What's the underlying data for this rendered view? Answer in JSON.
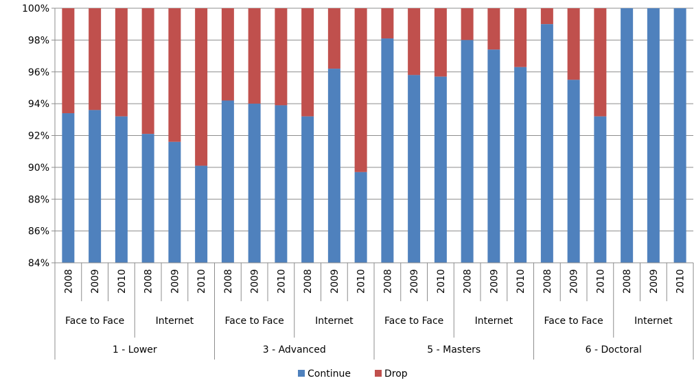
{
  "chart_data": {
    "type": "bar",
    "stacked": true,
    "percent_stacked": true,
    "title": "",
    "xlabel": "",
    "ylabel": "",
    "ylim": [
      0.84,
      1.0
    ],
    "y_ticks": [
      0.84,
      0.86,
      0.88,
      0.9,
      0.92,
      0.94,
      0.96,
      0.98,
      1.0
    ],
    "y_tick_labels": [
      "84%",
      "86%",
      "88%",
      "90%",
      "92%",
      "94%",
      "96%",
      "98%",
      "100%"
    ],
    "grid": true,
    "legend_position": "bottom",
    "levels": [
      {
        "label": "1 - Lower",
        "modes": [
          {
            "label": "Face to Face",
            "years": [
              "2008",
              "2009",
              "2010"
            ],
            "continue": [
              0.934,
              0.936,
              0.932
            ]
          },
          {
            "label": "Internet",
            "years": [
              "2008",
              "2009",
              "2010"
            ],
            "continue": [
              0.921,
              0.916,
              0.901
            ]
          }
        ]
      },
      {
        "label": "3 - Advanced",
        "modes": [
          {
            "label": "Face to Face",
            "years": [
              "2008",
              "2009",
              "2010"
            ],
            "continue": [
              0.942,
              0.94,
              0.939
            ]
          },
          {
            "label": "Internet",
            "years": [
              "2008",
              "2009",
              "2010"
            ],
            "continue": [
              0.932,
              0.962,
              0.897
            ]
          }
        ]
      },
      {
        "label": "5 - Masters",
        "modes": [
          {
            "label": "Face to Face",
            "years": [
              "2008",
              "2009",
              "2010"
            ],
            "continue": [
              0.981,
              0.958,
              0.957
            ]
          },
          {
            "label": "Internet",
            "years": [
              "2008",
              "2009",
              "2010"
            ],
            "continue": [
              0.98,
              0.974,
              0.963
            ]
          }
        ]
      },
      {
        "label": "6 - Doctoral",
        "modes": [
          {
            "label": "Face to Face",
            "years": [
              "2008",
              "2009",
              "2010"
            ],
            "continue": [
              0.99,
              0.955,
              0.932
            ]
          },
          {
            "label": "Internet",
            "years": [
              "2008",
              "2009",
              "2010"
            ],
            "continue": [
              1.0,
              1.0,
              1.0
            ]
          }
        ]
      }
    ],
    "series": [
      {
        "name": "Continue",
        "color": "#4f81bd"
      },
      {
        "name": "Drop",
        "color": "#c0504d"
      }
    ]
  }
}
